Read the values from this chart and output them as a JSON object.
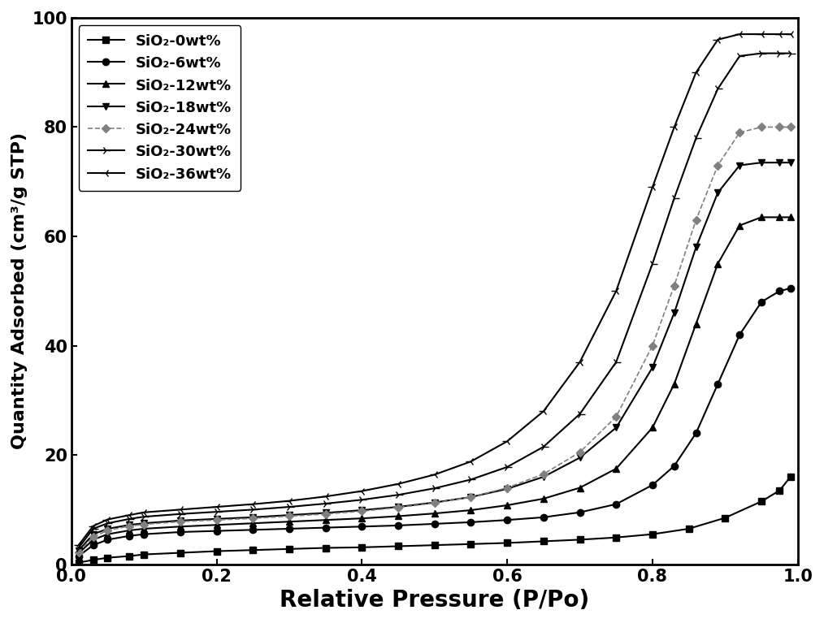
{
  "xlabel": "Relative Pressure (P/Po)",
  "ylabel": "Quantity Adsorbed (cm³/g STP)",
  "xlim": [
    0.0,
    1.0
  ],
  "ylim": [
    0,
    100
  ],
  "xticks": [
    0.0,
    0.2,
    0.4,
    0.6,
    0.8,
    1.0
  ],
  "yticks": [
    0,
    20,
    40,
    60,
    80,
    100
  ],
  "background_color": "#ffffff",
  "series": [
    {
      "label": "SiO₂-0wt%",
      "color": "#000000",
      "marker": "s",
      "markersize": 6,
      "linewidth": 1.5,
      "linestyle": "-",
      "x": [
        0.01,
        0.03,
        0.05,
        0.08,
        0.1,
        0.15,
        0.2,
        0.25,
        0.3,
        0.35,
        0.4,
        0.45,
        0.5,
        0.55,
        0.6,
        0.65,
        0.7,
        0.75,
        0.8,
        0.85,
        0.9,
        0.95,
        0.975,
        0.99
      ],
      "y": [
        0.3,
        0.8,
        1.2,
        1.5,
        1.8,
        2.1,
        2.4,
        2.6,
        2.8,
        3.0,
        3.1,
        3.3,
        3.5,
        3.7,
        3.9,
        4.2,
        4.5,
        4.9,
        5.5,
        6.5,
        8.5,
        11.5,
        13.5,
        16.0
      ]
    },
    {
      "label": "SiO₂-6wt%",
      "color": "#000000",
      "marker": "o",
      "markersize": 6,
      "linewidth": 1.5,
      "linestyle": "-",
      "x": [
        0.01,
        0.03,
        0.05,
        0.08,
        0.1,
        0.15,
        0.2,
        0.25,
        0.3,
        0.35,
        0.4,
        0.45,
        0.5,
        0.55,
        0.6,
        0.65,
        0.7,
        0.75,
        0.8,
        0.83,
        0.86,
        0.89,
        0.92,
        0.95,
        0.975,
        0.99
      ],
      "y": [
        1.5,
        3.5,
        4.5,
        5.2,
        5.5,
        5.9,
        6.1,
        6.3,
        6.5,
        6.7,
        6.9,
        7.1,
        7.4,
        7.7,
        8.1,
        8.6,
        9.5,
        11.0,
        14.5,
        18.0,
        24.0,
        33.0,
        42.0,
        48.0,
        50.0,
        50.5
      ]
    },
    {
      "label": "SiO₂-12wt%",
      "color": "#000000",
      "marker": "^",
      "markersize": 6,
      "linewidth": 1.5,
      "linestyle": "-",
      "x": [
        0.01,
        0.03,
        0.05,
        0.08,
        0.1,
        0.15,
        0.2,
        0.25,
        0.3,
        0.35,
        0.4,
        0.45,
        0.5,
        0.55,
        0.6,
        0.65,
        0.7,
        0.75,
        0.8,
        0.83,
        0.86,
        0.89,
        0.92,
        0.95,
        0.975,
        0.99
      ],
      "y": [
        2.0,
        4.5,
        5.5,
        6.2,
        6.5,
        6.9,
        7.2,
        7.5,
        7.8,
        8.1,
        8.4,
        8.8,
        9.3,
        9.9,
        10.8,
        12.0,
        14.0,
        17.5,
        25.0,
        33.0,
        44.0,
        55.0,
        62.0,
        63.5,
        63.5,
        63.5
      ]
    },
    {
      "label": "SiO₂-18wt%",
      "color": "#000000",
      "marker": "v",
      "markersize": 6,
      "linewidth": 1.5,
      "linestyle": "-",
      "x": [
        0.01,
        0.03,
        0.05,
        0.08,
        0.1,
        0.15,
        0.2,
        0.25,
        0.3,
        0.35,
        0.4,
        0.45,
        0.5,
        0.55,
        0.6,
        0.65,
        0.7,
        0.75,
        0.8,
        0.83,
        0.86,
        0.89,
        0.92,
        0.95,
        0.975,
        0.99
      ],
      "y": [
        2.5,
        5.5,
        6.5,
        7.2,
        7.5,
        8.0,
        8.3,
        8.6,
        9.0,
        9.4,
        9.9,
        10.5,
        11.3,
        12.3,
        13.8,
        16.0,
        19.5,
        25.0,
        36.0,
        46.0,
        58.0,
        68.0,
        73.0,
        73.5,
        73.5,
        73.5
      ]
    },
    {
      "label": "SiO₂-24wt%",
      "color": "#808080",
      "marker": "D",
      "markersize": 5,
      "linewidth": 1.2,
      "linestyle": "--",
      "x": [
        0.01,
        0.03,
        0.05,
        0.08,
        0.1,
        0.15,
        0.2,
        0.25,
        0.3,
        0.35,
        0.4,
        0.45,
        0.5,
        0.55,
        0.6,
        0.65,
        0.7,
        0.75,
        0.8,
        0.83,
        0.86,
        0.89,
        0.92,
        0.95,
        0.975,
        0.99
      ],
      "y": [
        2.2,
        5.0,
        6.2,
        7.0,
        7.3,
        7.8,
        8.1,
        8.4,
        8.8,
        9.2,
        9.7,
        10.4,
        11.2,
        12.3,
        14.0,
        16.5,
        20.5,
        27.0,
        40.0,
        51.0,
        63.0,
        73.0,
        79.0,
        80.0,
        80.0,
        80.0
      ]
    },
    {
      "label": "SiO₂-30wt%",
      "color": "#000000",
      "marker": "4",
      "markersize": 8,
      "linewidth": 1.5,
      "linestyle": "-",
      "x": [
        0.01,
        0.03,
        0.05,
        0.08,
        0.1,
        0.15,
        0.2,
        0.25,
        0.3,
        0.35,
        0.4,
        0.45,
        0.5,
        0.55,
        0.6,
        0.65,
        0.7,
        0.75,
        0.8,
        0.83,
        0.86,
        0.89,
        0.92,
        0.95,
        0.975,
        0.99
      ],
      "y": [
        3.0,
        6.5,
        7.5,
        8.3,
        8.7,
        9.2,
        9.6,
        10.0,
        10.5,
        11.1,
        11.8,
        12.7,
        13.9,
        15.5,
        17.8,
        21.5,
        27.5,
        37.0,
        55.0,
        67.0,
        78.0,
        87.0,
        93.0,
        93.5,
        93.5,
        93.5
      ]
    },
    {
      "label": "SiO₂-36wt%",
      "color": "#000000",
      "marker": "3",
      "markersize": 8,
      "linewidth": 1.5,
      "linestyle": "-",
      "x": [
        0.01,
        0.03,
        0.05,
        0.08,
        0.1,
        0.15,
        0.2,
        0.25,
        0.3,
        0.35,
        0.4,
        0.45,
        0.5,
        0.55,
        0.6,
        0.65,
        0.7,
        0.75,
        0.8,
        0.83,
        0.86,
        0.89,
        0.92,
        0.95,
        0.975,
        0.99
      ],
      "y": [
        3.5,
        7.0,
        8.2,
        9.0,
        9.5,
        10.0,
        10.5,
        11.0,
        11.6,
        12.4,
        13.4,
        14.7,
        16.4,
        18.8,
        22.5,
        28.0,
        37.0,
        50.0,
        69.0,
        80.0,
        90.0,
        96.0,
        97.0,
        97.0,
        97.0,
        97.0
      ]
    }
  ],
  "legend_loc": "upper left",
  "fontsize_xlabel": 20,
  "fontsize_ylabel": 16,
  "fontsize_tick": 15,
  "fontsize_legend": 13
}
